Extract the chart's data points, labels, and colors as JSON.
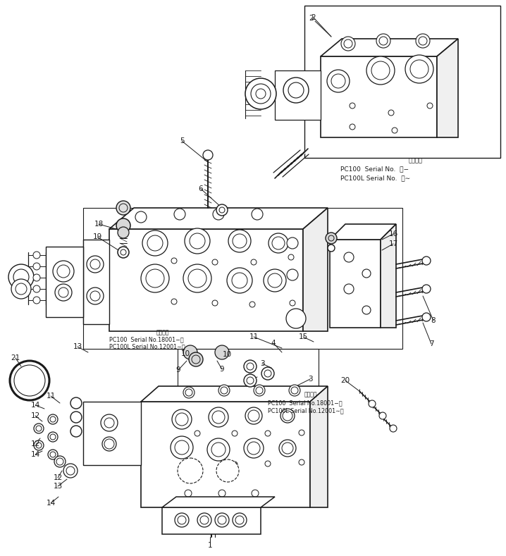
{
  "bg_color": "#ffffff",
  "line_color": "#1a1a1a",
  "figsize": [
    7.18,
    7.89
  ],
  "dpi": 100,
  "annotations": {
    "inset_serial_title": "適用号機",
    "inset_serial_1": "PC100  Serial No.  ・−",
    "inset_serial_2": "PC100L Serial No.  ・∼",
    "mid_serial_title": "適用号機",
    "mid_serial_1": "PC100  Serial No.18001−・",
    "mid_serial_2": "PC100L Serial No.12001∼・",
    "low_serial_title": "適用号機",
    "low_serial_1": "PC100  Serial No.18001−・",
    "low_serial_2": "PC100L Serial No.12001∼・"
  }
}
